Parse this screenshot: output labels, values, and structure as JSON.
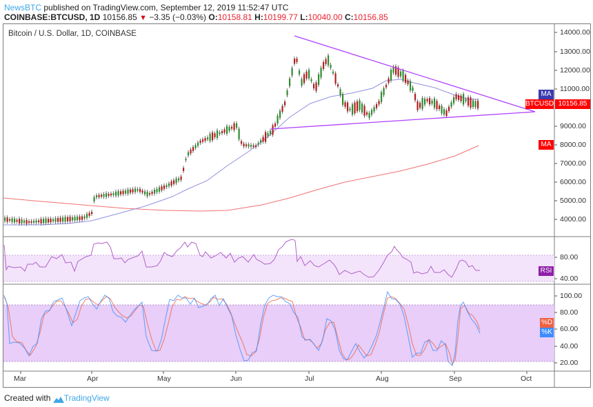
{
  "header": {
    "publisher": "NewsBTC",
    "published_text": " published on TradingView.com, September 12, 2019 11:52:47 UTC",
    "symbol": "COINBASE:BTCUSD, 1D",
    "last": "10156.85",
    "change_arrow": "▼",
    "change": "−3.35 (−0.03%)",
    "o_label": "O:",
    "o": "10158.81",
    "h_label": "H:",
    "h": "10199.77",
    "l_label": "L:",
    "l": "10040.00",
    "c_label": "C:",
    "c": "10156.85"
  },
  "chart_title": "Bitcoin / U.S. Dollar, 1D, COINBASE",
  "price_axis": [
    "14000.00",
    "13000.00",
    "12000.00",
    "11000.00",
    "9000.00",
    "8000.00",
    "7000.00",
    "6000.00",
    "5000.00",
    "4000.00"
  ],
  "rsi_axis": [
    "80.00",
    "40.00"
  ],
  "stoch_axis": [
    "100.00",
    "80.00",
    "60.00",
    "40.00",
    "20.00"
  ],
  "time_axis": [
    "Mar",
    "Apr",
    "May",
    "Jun",
    "Jul",
    "Aug",
    "Sep",
    "Oct"
  ],
  "tags": {
    "ma_fast": "MA",
    "symbol": "BTCUSD",
    "price": "10156.85",
    "ma_slow": "MA",
    "rsi": "RSI",
    "d": "%D",
    "k": "%K"
  },
  "footer": {
    "created_with": "Created with",
    "brand": "TradingView"
  },
  "colors": {
    "up": "#2e8b2e",
    "down": "#b01e1e",
    "triangle": "#b040ff",
    "ma50": "#9090e0",
    "ma200": "#f07070",
    "rsi": "#b060c8",
    "k": "#3c8cff",
    "d": "#f06040",
    "price_tag": "#ff0000",
    "ma_tag": "#3b3bb0"
  },
  "chart_data": [
    {
      "type": "candlestick",
      "title": "Bitcoin / U.S. Dollar, 1D, COINBASE",
      "x": [
        "Mar",
        "Apr",
        "May",
        "Jun",
        "Jul",
        "Aug",
        "Sep"
      ],
      "approx_close": [
        3850,
        4150,
        5400,
        8500,
        11800,
        10500,
        10156.85
      ],
      "ylim": [
        3500,
        14400
      ],
      "overlays": [
        {
          "name": "MA (50)",
          "color": "#9090e0",
          "approx": [
            3700,
            3750,
            4200,
            6200,
            9500,
            10800,
            10300
          ]
        },
        {
          "name": "MA (200)",
          "color": "#f07070",
          "approx": [
            5100,
            4800,
            4500,
            4500,
            5600,
            6900,
            7900
          ]
        }
      ],
      "annotations": [
        "Symmetrical triangle: upper line from ~13800 (late Jun) descending, lower line from ~8800 ascending, apex ~9700 near Oct"
      ]
    },
    {
      "type": "line",
      "title": "RSI",
      "ylim": [
        30,
        100
      ],
      "bands": [
        40,
        80
      ],
      "last": 54
    },
    {
      "type": "line",
      "title": "Stochastic",
      "series": [
        {
          "name": "%K"
        },
        {
          "name": "%D"
        }
      ],
      "ylim": [
        10,
        105
      ],
      "bands": [
        20,
        80
      ],
      "last_k": 58,
      "last_d": 64
    }
  ]
}
